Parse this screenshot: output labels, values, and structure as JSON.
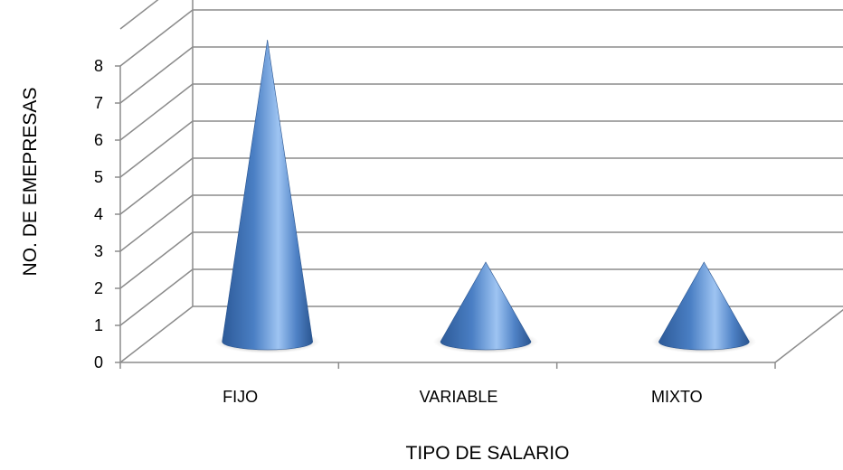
{
  "chart_data": {
    "type": "bar",
    "shape": "cone-3d",
    "categories": [
      "FIJO",
      "VARIABLE",
      "MIXTO"
    ],
    "values": [
      8,
      2,
      2
    ],
    "title": "",
    "xlabel": "TIPO DE SALARIO",
    "ylabel": "NO. DE EMEPRESAS",
    "ylim": [
      0,
      8
    ],
    "yticks": [
      "0",
      "1",
      "2",
      "3",
      "4",
      "5",
      "6",
      "7",
      "8"
    ],
    "grid": true,
    "legend": "none",
    "colors": {
      "bar": "#4f81bd",
      "bar_light": "#9fc3f0",
      "bar_dark": "#2a5694",
      "grid": "#8c8c8c"
    }
  }
}
